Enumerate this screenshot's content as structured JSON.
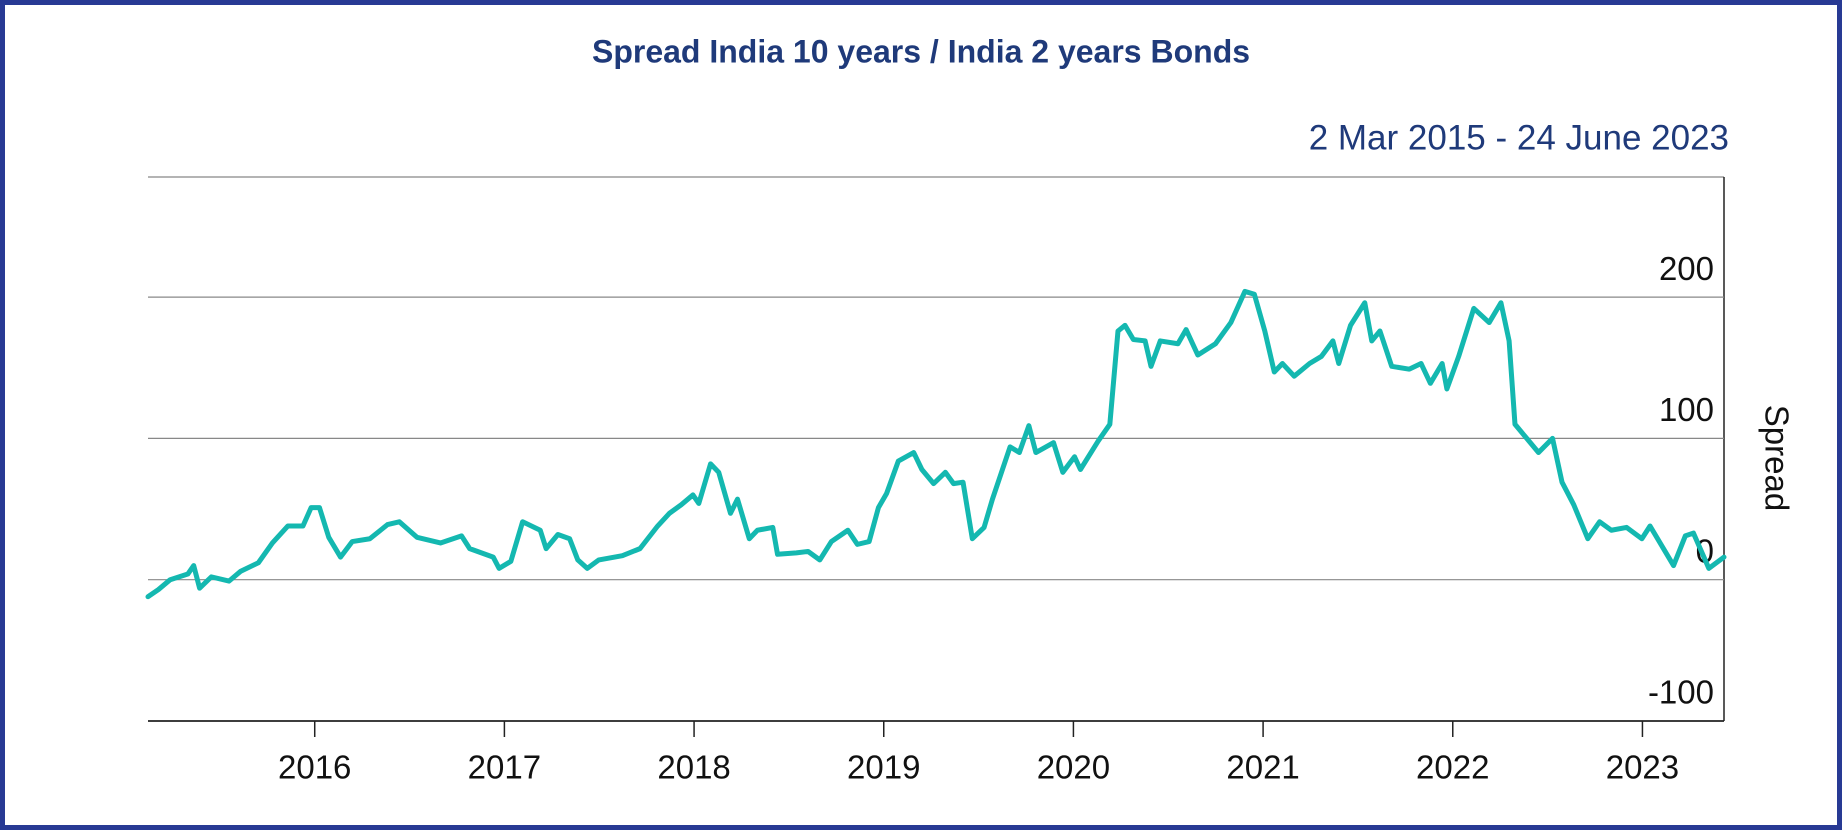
{
  "chart_data": {
    "type": "line",
    "title": "Spread India 10 years / India 2 years Bonds",
    "subtitle": "2 Mar 2015 - 24 June 2023",
    "y_label": "Spread",
    "xlim": [
      2015.121,
      2023.43
    ],
    "xticks": [
      2016,
      2017,
      2018,
      2019,
      2020,
      2021,
      2022,
      2023
    ],
    "ylim": [
      -100,
      285
    ],
    "yticks": [
      -100,
      0,
      100,
      200
    ],
    "grid": true,
    "series": [
      {
        "name": "Spread",
        "color": "#14b8b0",
        "x": [
          2015.121,
          2015.176,
          2015.238,
          2015.331,
          2015.362,
          2015.393,
          2015.455,
          2015.548,
          2015.61,
          2015.703,
          2015.777,
          2015.858,
          2015.938,
          2015.981,
          2016.025,
          2016.074,
          2016.136,
          2016.198,
          2016.291,
          2016.384,
          2016.446,
          2016.539,
          2016.663,
          2016.774,
          2016.817,
          2016.941,
          2016.972,
          2017.034,
          2017.096,
          2017.189,
          2017.22,
          2017.282,
          2017.344,
          2017.387,
          2017.437,
          2017.498,
          2017.622,
          2017.715,
          2017.808,
          2017.87,
          2017.932,
          2017.994,
          2018.025,
          2018.087,
          2018.13,
          2018.192,
          2018.229,
          2018.291,
          2018.334,
          2018.415,
          2018.44,
          2018.539,
          2018.601,
          2018.663,
          2018.724,
          2018.811,
          2018.861,
          2018.923,
          2018.972,
          2019.015,
          2019.077,
          2019.158,
          2019.201,
          2019.263,
          2019.325,
          2019.368,
          2019.418,
          2019.467,
          2019.529,
          2019.573,
          2019.666,
          2019.715,
          2019.765,
          2019.802,
          2019.895,
          2019.944,
          2020.006,
          2020.037,
          2020.13,
          2020.192,
          2020.235,
          2020.272,
          2020.316,
          2020.378,
          2020.409,
          2020.458,
          2020.551,
          2020.594,
          2020.656,
          2020.749,
          2020.83,
          2020.904,
          2020.954,
          2021.009,
          2021.059,
          2021.102,
          2021.164,
          2021.245,
          2021.307,
          2021.368,
          2021.399,
          2021.461,
          2021.536,
          2021.573,
          2021.616,
          2021.678,
          2021.771,
          2021.833,
          2021.882,
          2021.944,
          2021.969,
          2022.031,
          2022.111,
          2022.192,
          2022.254,
          2022.297,
          2022.328,
          2022.39,
          2022.452,
          2022.526,
          2022.576,
          2022.638,
          2022.712,
          2022.774,
          2022.836,
          2022.916,
          2022.997,
          2023.04,
          2023.164,
          2023.226,
          2023.269,
          2023.35,
          2023.43
        ],
        "values": [
          -12,
          -7,
          0,
          4,
          10,
          -6,
          2,
          -1,
          6,
          12,
          26,
          38,
          38,
          51,
          51,
          30,
          16,
          27,
          29,
          39,
          41,
          30,
          26,
          31,
          22,
          16,
          8,
          13,
          41,
          35,
          22,
          32,
          29,
          14,
          8,
          14,
          17,
          22,
          38,
          47,
          53,
          60,
          54,
          82,
          76,
          47,
          57,
          29,
          35,
          37,
          18,
          19,
          20,
          14,
          27,
          35,
          25,
          27,
          51,
          61,
          84,
          90,
          78,
          68,
          76,
          68,
          69,
          29,
          37,
          57,
          94,
          90,
          109,
          90,
          97,
          76,
          87,
          78,
          98,
          110,
          176,
          180,
          170,
          169,
          151,
          169,
          167,
          177,
          159,
          167,
          182,
          204,
          202,
          176,
          147,
          153,
          144,
          153,
          158,
          169,
          153,
          180,
          196,
          169,
          176,
          151,
          149,
          153,
          139,
          153,
          135,
          158,
          192,
          182,
          196,
          169,
          110,
          100,
          90,
          100,
          69,
          53,
          29,
          41,
          35,
          37,
          29,
          38,
          10,
          31,
          33,
          8,
          16
        ]
      }
    ]
  }
}
